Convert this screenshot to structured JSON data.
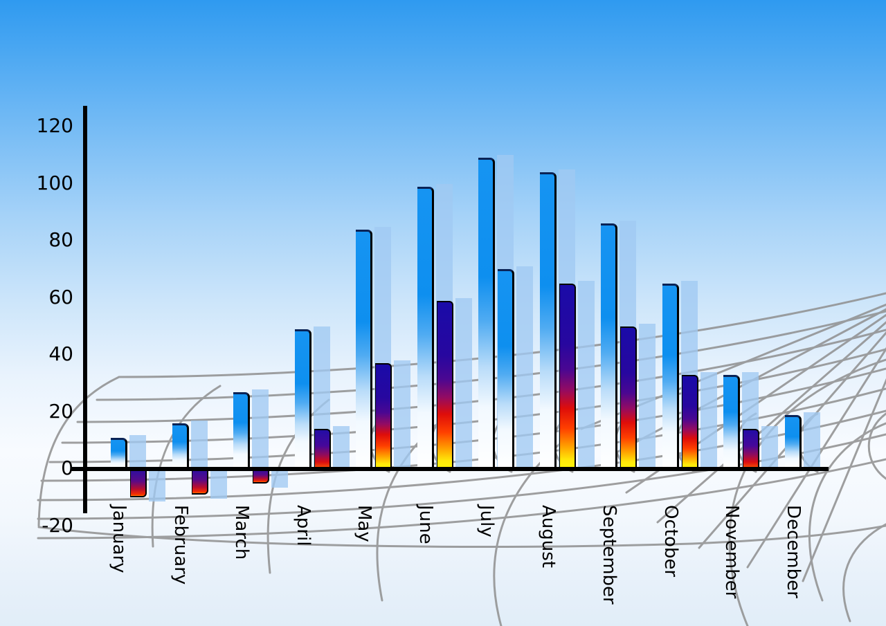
{
  "chart_data": {
    "type": "bar",
    "title": "",
    "xlabel": "",
    "ylabel": "",
    "categories": [
      "January",
      "February",
      "March",
      "April",
      "May",
      "June",
      "July",
      "August",
      "September",
      "October",
      "November",
      "December"
    ],
    "series": [
      {
        "name": "primary-blue-bars",
        "style": "blue",
        "values": [
          11,
          16,
          27,
          49,
          84,
          99,
          109,
          104,
          86,
          65,
          33,
          19
        ]
      },
      {
        "name": "secondary-gradient-bars",
        "style": "fire",
        "values": [
          -10,
          -9,
          -5,
          14,
          37,
          59,
          70,
          65,
          50,
          33,
          14,
          null
        ],
        "per_bar_style": [
          "fire",
          "fire",
          "fire",
          "fire",
          "fire",
          "fire",
          "blue",
          "fire",
          "fire",
          "fire",
          "fire",
          "fire"
        ]
      }
    ],
    "y_ticks": [
      {
        "label": "120",
        "value": 120
      },
      {
        "label": "100",
        "value": 100
      },
      {
        "label": "80",
        "value": 80
      },
      {
        "label": "60",
        "value": 60
      },
      {
        "label": "40",
        "value": 40
      },
      {
        "label": "20",
        "value": 20
      },
      {
        "label": "0",
        "value": 0
      },
      {
        "label": "-20",
        "value": -20
      }
    ],
    "ylim": [
      -20,
      120
    ],
    "grid": "decorative curved gray mesh",
    "legend": "none"
  },
  "colors": {
    "bar_blue_top": "#0e8fef",
    "bar_blue_bottom": "#ffffff",
    "fire_navy": "#1a0ba8",
    "fire_red": "#de0d0a",
    "fire_yellow": "#fff50a",
    "shadow_blue": "#a0c9f2",
    "axis": "#000000",
    "grid_line": "#8f8f8f",
    "sky_top": "#2f9af0",
    "sky_bottom": "#e1edf8"
  }
}
